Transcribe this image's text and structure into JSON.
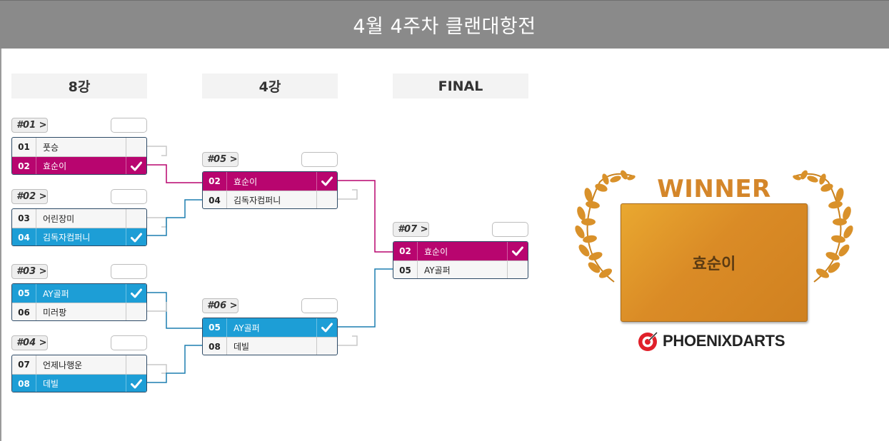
{
  "page": {
    "title": "4월 4주차 클랜대항전"
  },
  "rounds": {
    "r8": "8강",
    "r4": "4강",
    "final": "FINAL"
  },
  "matches": [
    {
      "label": "#01 >",
      "teams": [
        {
          "seed": "01",
          "name": "풋승",
          "winner": false
        },
        {
          "seed": "02",
          "name": "효순이",
          "winner": true
        }
      ]
    },
    {
      "label": "#02 >",
      "teams": [
        {
          "seed": "03",
          "name": "어린장미",
          "winner": false
        },
        {
          "seed": "04",
          "name": "김독자컴퍼니",
          "winner": true
        }
      ]
    },
    {
      "label": "#03 >",
      "teams": [
        {
          "seed": "05",
          "name": "AY골퍼",
          "winner": true
        },
        {
          "seed": "06",
          "name": "미러팡",
          "winner": false
        }
      ]
    },
    {
      "label": "#04 >",
      "teams": [
        {
          "seed": "07",
          "name": "언제나행운",
          "winner": false
        },
        {
          "seed": "08",
          "name": "데빌",
          "winner": true
        }
      ]
    },
    {
      "label": "#05 >",
      "teams": [
        {
          "seed": "02",
          "name": "효순이",
          "winner": true
        },
        {
          "seed": "04",
          "name": "김독자컴퍼니",
          "winner": false
        }
      ]
    },
    {
      "label": "#06 >",
      "teams": [
        {
          "seed": "05",
          "name": "AY골퍼",
          "winner": true
        },
        {
          "seed": "08",
          "name": "데빌",
          "winner": false
        }
      ]
    },
    {
      "label": "#07 >",
      "teams": [
        {
          "seed": "02",
          "name": "효순이",
          "winner": true
        },
        {
          "seed": "05",
          "name": "AY골퍼",
          "winner": false
        }
      ]
    }
  ],
  "winner": {
    "title": "WINNER",
    "name": "효순이"
  },
  "brand": {
    "name": "PHOENIXDARTS"
  },
  "colors": {
    "magenta": "#b8056f",
    "blue": "#1d9ed6",
    "gold": "#d4862a"
  },
  "icons": {
    "check": "check-icon",
    "laurel": "laurel-icon",
    "logo": "phoenix-logo-icon"
  }
}
